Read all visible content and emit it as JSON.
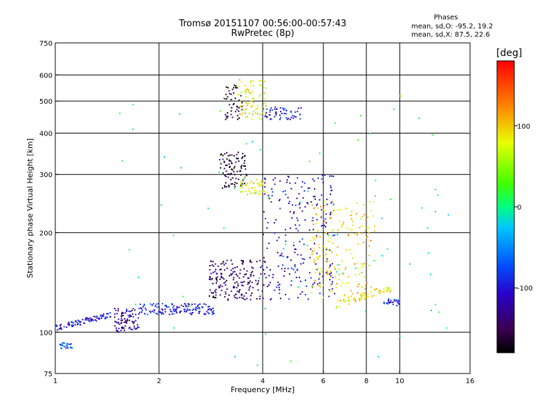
{
  "header": {
    "title_line1": "Tromsø 20151107 00:56:00-00:57:43",
    "title_line2": "RwPretec (8p)"
  },
  "phases": {
    "title": "Phases",
    "line_o": "mean, sd,O: -95.2, 19.2",
    "line_x": "mean, sd,X:  87.5, 22.6"
  },
  "colorbar": {
    "label": "[deg]",
    "ticks": [
      {
        "value": 100,
        "label": "100"
      },
      {
        "value": 0,
        "label": "0"
      },
      {
        "value": -100,
        "label": "-100"
      }
    ],
    "range": [
      -180,
      180
    ]
  },
  "chart_data": {
    "type": "scatter",
    "title": "Tromsø 20151107 00:56:00-00:57:43",
    "subtitle": "RwPretec (8p)",
    "xlabel": "Frequency [MHz]",
    "ylabel": "Stationary phase Virtual Height [km]",
    "xscale": "log",
    "yscale": "log",
    "xlim": [
      1,
      16
    ],
    "ylim": [
      75,
      750
    ],
    "xticks": [
      1,
      2,
      4,
      6,
      8,
      10,
      16
    ],
    "xtick_labels": [
      "1",
      "2",
      "4",
      "6",
      "8",
      "10",
      "16"
    ],
    "yticks": [
      75,
      100,
      200,
      300,
      400,
      500,
      600,
      750
    ],
    "ytick_labels": [
      "75",
      "100",
      "200",
      "300",
      "400",
      "500",
      "600",
      "750"
    ],
    "grid": true,
    "color_variable": "phase [deg]",
    "clusters": [
      {
        "f": [
          1.0,
          1.45
        ],
        "h": [
          101,
          115
        ],
        "phase": -100,
        "n": 90,
        "trend": 1
      },
      {
        "f": [
          1.03,
          1.12
        ],
        "h": [
          89,
          93
        ],
        "phase": -70,
        "n": 25,
        "trend": 0
      },
      {
        "f": [
          1.48,
          1.75
        ],
        "h": [
          100,
          118
        ],
        "phase": -125,
        "n": 90,
        "trend": 0
      },
      {
        "f": [
          1.75,
          2.9
        ],
        "h": [
          113,
          122
        ],
        "phase": -95,
        "n": 140,
        "trend": 0
      },
      {
        "f": [
          2.8,
          4.0
        ],
        "h": [
          125,
          165
        ],
        "phase": -145,
        "n": 180,
        "trend": 0
      },
      {
        "f": [
          3.0,
          3.6
        ],
        "h": [
          270,
          350
        ],
        "phase": -160,
        "n": 90,
        "trend": 0
      },
      {
        "f": [
          3.45,
          4.1
        ],
        "h": [
          260,
          295
        ],
        "phase": 80,
        "n": 55,
        "trend": 0
      },
      {
        "f": [
          3.1,
          3.5
        ],
        "h": [
          440,
          560
        ],
        "phase": -165,
        "n": 45,
        "trend": 0
      },
      {
        "f": [
          3.4,
          4.1
        ],
        "h": [
          440,
          580
        ],
        "phase": 85,
        "n": 80,
        "trend": 0
      },
      {
        "f": [
          4.0,
          5.2
        ],
        "h": [
          440,
          480
        ],
        "phase": -95,
        "n": 55,
        "trend": 0
      },
      {
        "f": [
          4.0,
          6.5
        ],
        "h": [
          125,
          300
        ],
        "phase": -110,
        "n": 240,
        "trend": 0
      },
      {
        "f": [
          5.5,
          8.5
        ],
        "h": [
          125,
          250
        ],
        "phase": 100,
        "n": 200,
        "trend": 0
      },
      {
        "f": [
          6.5,
          9.5
        ],
        "h": [
          118,
          140
        ],
        "phase": 90,
        "n": 60,
        "trend": 1
      },
      {
        "f": [
          9.0,
          10.0
        ],
        "h": [
          120,
          126
        ],
        "phase": -90,
        "n": 25,
        "trend": 0
      },
      {
        "f": [
          1.5,
          14.0
        ],
        "h": [
          78,
          520
        ],
        "phase": 0,
        "n": 80,
        "trend": 0
      }
    ]
  }
}
